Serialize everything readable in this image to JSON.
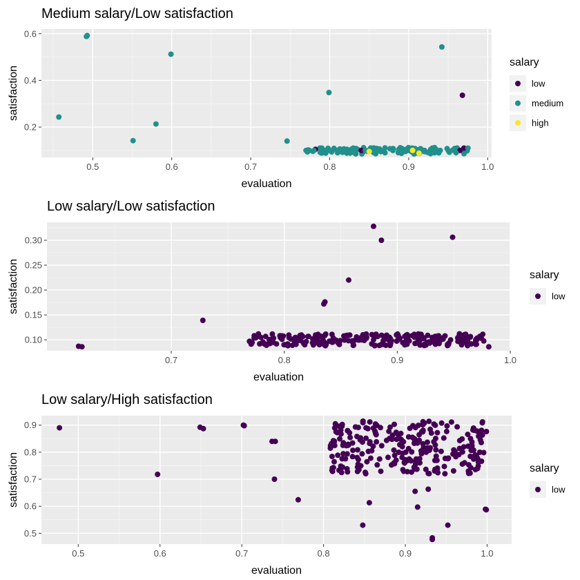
{
  "chart_data": [
    {
      "type": "scatter",
      "title": "Medium salary/Low satisfaction",
      "xlabel": "evaluation",
      "ylabel": "satisfaction",
      "xlim": [
        0.435,
        1.005
      ],
      "ylim": [
        0.07,
        0.62
      ],
      "xticks": [
        0.5,
        0.6,
        0.7,
        0.8,
        0.9,
        1.0
      ],
      "xtick_labels": [
        "0.5",
        "0.6",
        "0.7",
        "0.8",
        "0.9",
        "1.0"
      ],
      "yticks": [
        0.2,
        0.4,
        0.6
      ],
      "ytick_labels": [
        "0.2",
        "0.4",
        "0.6"
      ],
      "grid": true,
      "legend": {
        "title": "salary",
        "position": "right",
        "entries": [
          {
            "label": "low",
            "color": "#440154"
          },
          {
            "label": "medium",
            "color": "#21908C"
          },
          {
            "label": "high",
            "color": "#FDE725"
          }
        ]
      },
      "series": [
        {
          "name": "low",
          "color": "#440154",
          "points": [
            [
              0.84,
              0.1
            ],
            [
              0.965,
              0.1
            ],
            [
              0.97,
              0.11
            ],
            [
              0.782,
              0.105
            ],
            [
              0.968,
              0.336
            ]
          ]
        },
        {
          "name": "medium",
          "color": "#21908C",
          "points": [
            [
              0.457,
              0.243
            ],
            [
              0.492,
              0.588
            ],
            [
              0.493,
              0.592
            ],
            [
              0.551,
              0.142
            ],
            [
              0.58,
              0.213
            ],
            [
              0.599,
              0.512
            ],
            [
              0.746,
              0.14
            ],
            [
              0.799,
              0.348
            ],
            [
              0.942,
              0.543
            ],
            [
              0.975,
              0.11
            ],
            [
              0.77,
              0.1
            ],
            [
              0.78,
              0.1
            ],
            [
              0.79,
              0.11
            ],
            [
              0.8,
              0.1
            ],
            [
              0.81,
              0.09
            ],
            [
              0.82,
              0.1
            ],
            [
              0.83,
              0.11
            ],
            [
              0.845,
              0.1
            ],
            [
              0.86,
              0.1
            ],
            [
              0.87,
              0.09
            ],
            [
              0.88,
              0.1
            ],
            [
              0.89,
              0.11
            ],
            [
              0.9,
              0.1
            ],
            [
              0.91,
              0.09
            ],
            [
              0.92,
              0.1
            ],
            [
              0.93,
              0.11
            ],
            [
              0.94,
              0.1
            ],
            [
              0.95,
              0.1
            ],
            [
              0.96,
              0.09
            ]
          ]
        },
        {
          "name": "high",
          "color": "#FDE725",
          "points": [
            [
              0.85,
              0.095
            ],
            [
              0.913,
              0.088
            ],
            [
              0.905,
              0.1
            ]
          ]
        }
      ],
      "dense_band": {
        "series": "medium",
        "x": [
          0.77,
          0.975
        ],
        "y": [
          0.085,
          0.112
        ],
        "count": 110
      }
    },
    {
      "type": "scatter",
      "title": "Low salary/Low satisfaction",
      "xlabel": "evaluation",
      "ylabel": "satisfaction",
      "xlim": [
        0.59,
        1.0
      ],
      "ylim": [
        0.078,
        0.336
      ],
      "xticks": [
        0.7,
        0.8,
        0.9,
        1.0
      ],
      "xtick_labels": [
        "0.7",
        "0.8",
        "0.9",
        "1.0"
      ],
      "yticks": [
        0.1,
        0.15,
        0.2,
        0.25,
        0.3
      ],
      "ytick_labels": [
        "0.10",
        "0.15",
        "0.20",
        "0.25",
        "0.30"
      ],
      "grid": true,
      "legend": {
        "title": "salary",
        "position": "right",
        "entries": [
          {
            "label": "low",
            "color": "#440154"
          }
        ]
      },
      "series": [
        {
          "name": "low",
          "color": "#440154",
          "points": [
            [
              0.618,
              0.087
            ],
            [
              0.621,
              0.086
            ],
            [
              0.728,
              0.139
            ],
            [
              0.835,
              0.172
            ],
            [
              0.836,
              0.176
            ],
            [
              0.857,
              0.22
            ],
            [
              0.879,
              0.328
            ],
            [
              0.886,
              0.3
            ],
            [
              0.949,
              0.306
            ],
            [
              0.981,
              0.086
            ]
          ]
        }
      ],
      "dense_band": {
        "series": "low",
        "x": [
          0.768,
          0.978
        ],
        "y": [
          0.088,
          0.112
        ],
        "count": 230
      }
    },
    {
      "type": "scatter",
      "title": "Low salary/High satisfaction",
      "xlabel": "evaluation",
      "ylabel": "satisfaction",
      "xlim": [
        0.455,
        1.03
      ],
      "ylim": [
        0.46,
        0.935
      ],
      "xticks": [
        0.5,
        0.6,
        0.7,
        0.8,
        0.9,
        1.0
      ],
      "xtick_labels": [
        "0.5",
        "0.6",
        "0.7",
        "0.8",
        "0.9",
        "1.0"
      ],
      "yticks": [
        0.5,
        0.6,
        0.7,
        0.8,
        0.9
      ],
      "ytick_labels": [
        "0.5",
        "0.6",
        "0.7",
        "0.8",
        "0.9"
      ],
      "grid": true,
      "legend": {
        "title": "salary",
        "position": "right",
        "entries": [
          {
            "label": "low",
            "color": "#440154"
          }
        ]
      },
      "series": [
        {
          "name": "low",
          "color": "#440154",
          "points": [
            [
              0.477,
              0.89
            ],
            [
              0.597,
              0.718
            ],
            [
              0.649,
              0.892
            ],
            [
              0.653,
              0.887
            ],
            [
              0.702,
              0.9
            ],
            [
              0.703,
              0.898
            ],
            [
              0.737,
              0.84
            ],
            [
              0.741,
              0.84
            ],
            [
              0.74,
              0.7
            ],
            [
              0.769,
              0.624
            ],
            [
              0.848,
              0.53
            ],
            [
              0.856,
              0.613
            ],
            [
              0.912,
              0.655
            ],
            [
              0.915,
              0.597
            ],
            [
              0.928,
              0.663
            ],
            [
              0.933,
              0.483
            ],
            [
              0.933,
              0.477
            ],
            [
              0.952,
              0.53
            ],
            [
              0.998,
              0.589
            ],
            [
              0.999,
              0.587
            ]
          ]
        }
      ],
      "dense_band": {
        "series": "low",
        "x": [
          0.808,
          1.0
        ],
        "y": [
          0.72,
          0.92
        ],
        "count": 260
      }
    }
  ]
}
